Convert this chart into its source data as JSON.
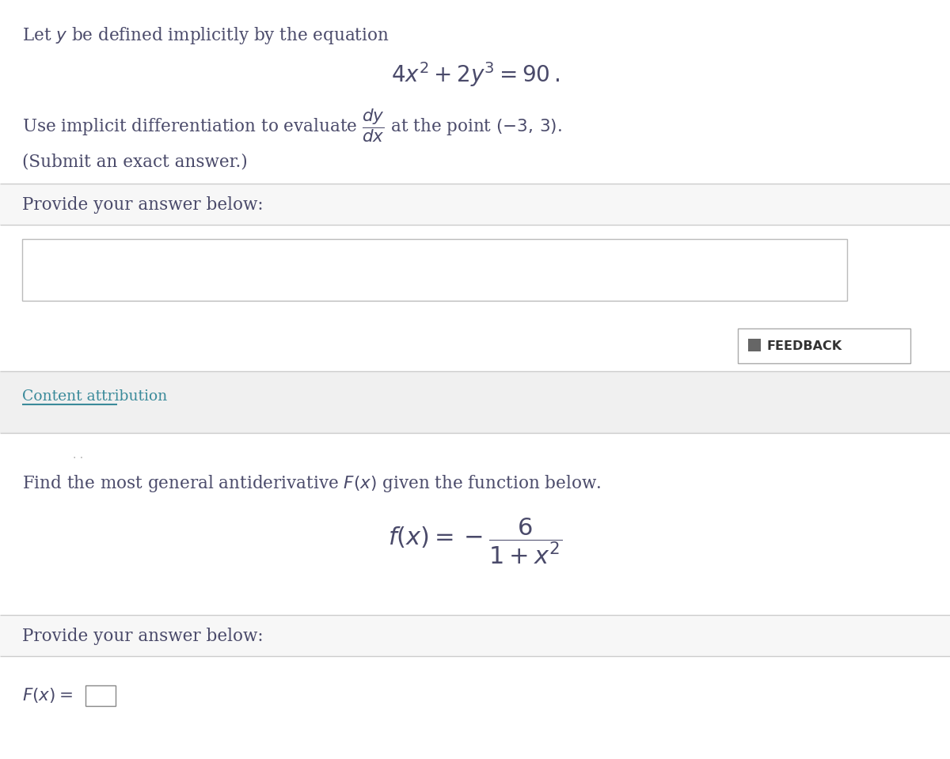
{
  "bg_color": "#ffffff",
  "text_color": "#4a4a6a",
  "content_attr_color": "#3a8a9a",
  "line_color": "#cccccc",
  "title1": "Let $y$ be defined implicitly by the equation",
  "eq1": "$4x^2 + 2y^3 = 90\\,.$",
  "line2": "Use implicit differentiation to evaluate $\\dfrac{dy}{dx}$ at the point $(-3,\\,3)$.",
  "line3": "(Submit an exact answer.)",
  "provide_answer": "Provide your answer below:",
  "content_attribution": "Content attribution",
  "find_antideriv": "Find the most general antiderivative $F(x)$ given the function below.",
  "eq2": "$f(x) = -\\dfrac{6}{1+x^2}$",
  "provide_answer2": "Provide your answer below:",
  "Fx_label": "$F(x) =$",
  "feedback_text": "FEEDBACK",
  "gray_bg": "#f0f0f0",
  "light_gray_bg": "#f7f7f7",
  "sep_color": "#cccccc",
  "input_border": "#bbbbbb",
  "feedback_border": "#aaaaaa",
  "icon_color": "#666666"
}
